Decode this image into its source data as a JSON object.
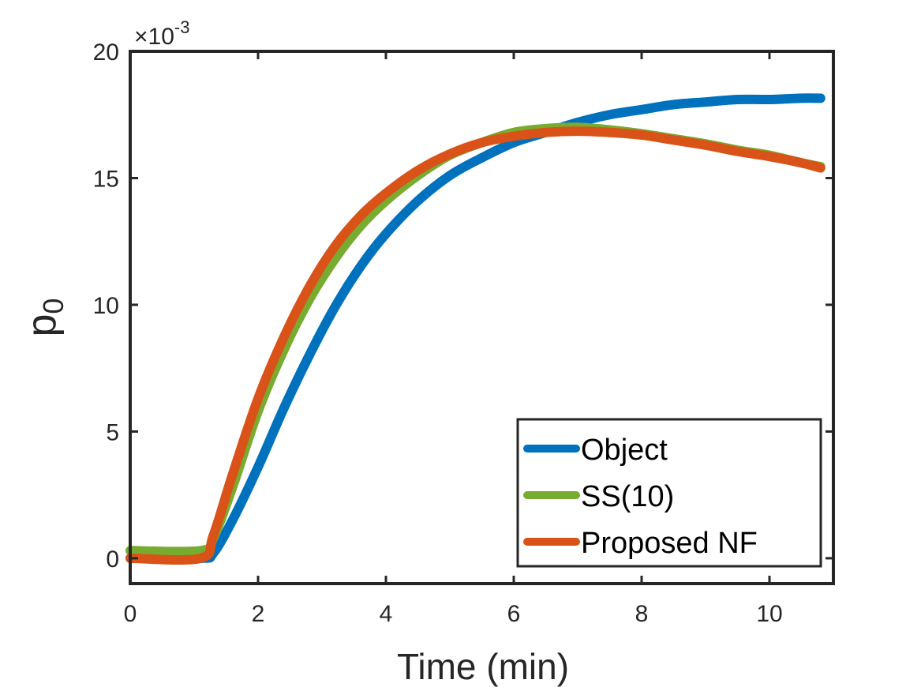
{
  "chart_data": {
    "type": "line",
    "xlabel": "Time (min)",
    "ylabel_main": "p",
    "ylabel_sub": "0",
    "exponent_label": {
      "prefix": "×10",
      "power": "-3"
    },
    "xlim": [
      0,
      11
    ],
    "ylim": [
      -1,
      20
    ],
    "xticks": [
      0,
      2,
      4,
      6,
      8,
      10
    ],
    "yticks": [
      0,
      5,
      10,
      15,
      20
    ],
    "legend_position": "bottom-right",
    "grid": false,
    "series": [
      {
        "name": "Object",
        "color": "#0072BD",
        "x": [
          0,
          1.1,
          1.3,
          1.6,
          2.0,
          2.4,
          2.8,
          3.2,
          3.6,
          4.0,
          4.5,
          5.0,
          5.5,
          6.0,
          6.5,
          7.0,
          7.5,
          8.0,
          8.5,
          9.0,
          9.5,
          10.0,
          10.5,
          10.8
        ],
        "y": [
          0,
          0,
          0.2,
          1.5,
          3.6,
          5.9,
          8.0,
          9.9,
          11.5,
          12.8,
          14.1,
          15.1,
          15.8,
          16.4,
          16.8,
          17.2,
          17.5,
          17.7,
          17.9,
          18.0,
          18.1,
          18.1,
          18.15,
          18.15
        ]
      },
      {
        "name": "SS(10)",
        "color": "#77AC30",
        "x": [
          0,
          1.1,
          1.3,
          1.6,
          2.0,
          2.4,
          2.8,
          3.2,
          3.6,
          4.0,
          4.5,
          5.0,
          5.5,
          6.0,
          6.5,
          7.0,
          7.5,
          8.0,
          8.5,
          9.0,
          9.5,
          10.0,
          10.5,
          10.8
        ],
        "y": [
          0.3,
          0.3,
          0.8,
          2.8,
          5.8,
          8.2,
          10.2,
          11.8,
          13.1,
          14.1,
          15.1,
          15.9,
          16.4,
          16.8,
          16.95,
          17.0,
          16.9,
          16.75,
          16.55,
          16.35,
          16.1,
          15.9,
          15.6,
          15.45
        ]
      },
      {
        "name": "Proposed NF",
        "color": "#D95319",
        "x": [
          0,
          1.1,
          1.3,
          1.6,
          2.0,
          2.4,
          2.8,
          3.2,
          3.6,
          4.0,
          4.5,
          5.0,
          5.5,
          6.0,
          6.5,
          7.0,
          7.5,
          8.0,
          8.5,
          9.0,
          9.5,
          10.0,
          10.5,
          10.8
        ],
        "y": [
          0,
          0,
          0.9,
          3.3,
          6.3,
          8.7,
          10.7,
          12.3,
          13.5,
          14.4,
          15.3,
          15.95,
          16.4,
          16.65,
          16.8,
          16.85,
          16.8,
          16.7,
          16.5,
          16.3,
          16.05,
          15.85,
          15.6,
          15.4
        ]
      }
    ]
  }
}
